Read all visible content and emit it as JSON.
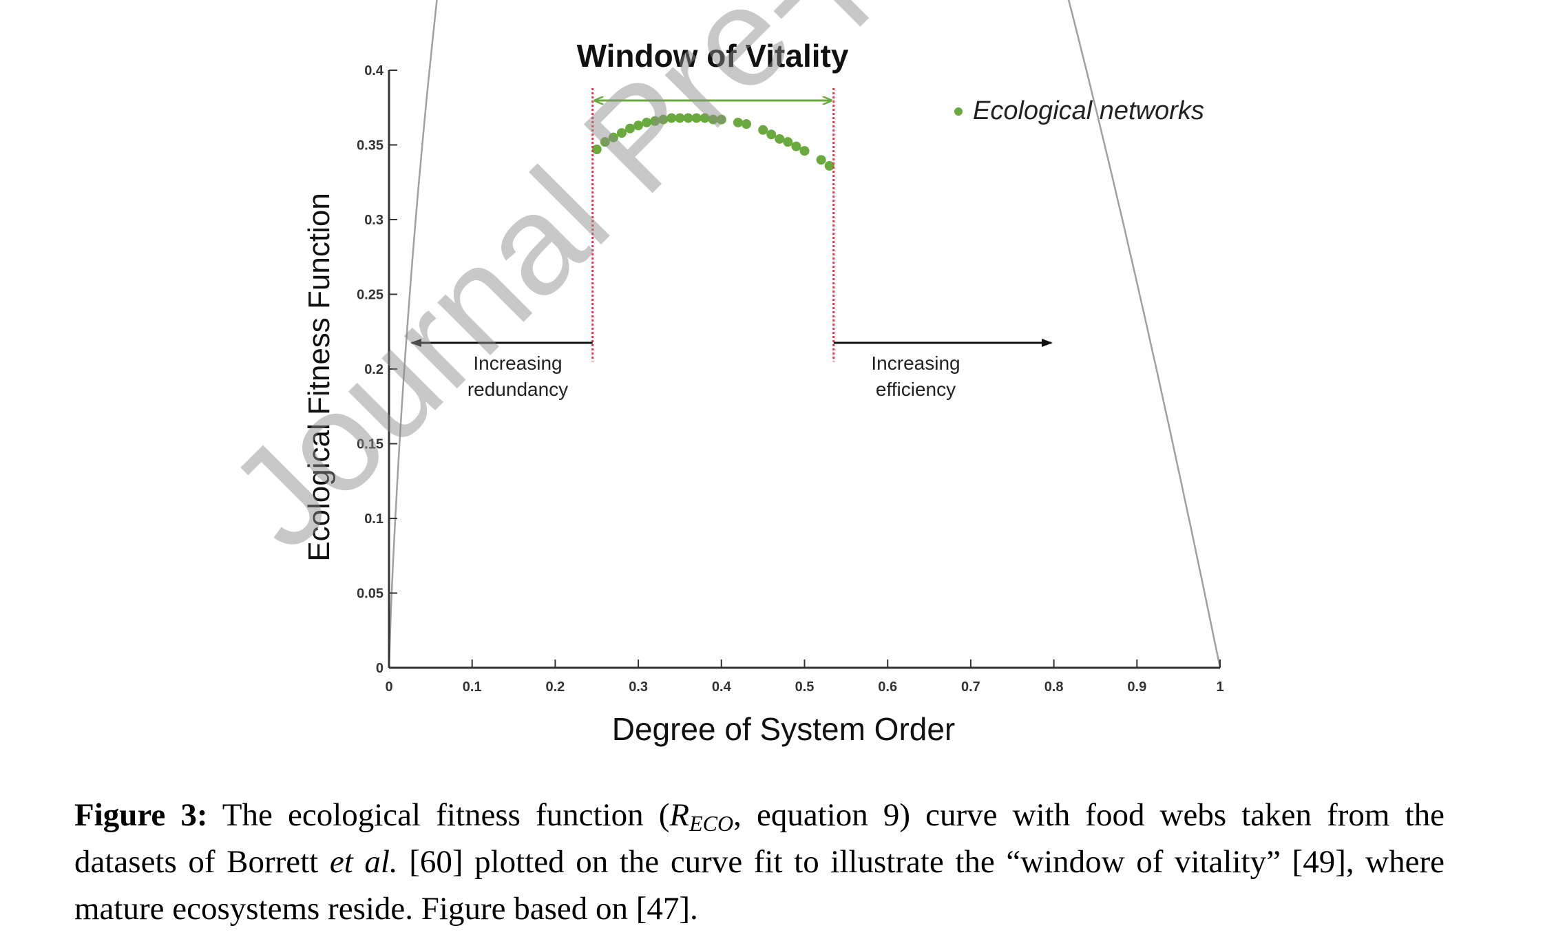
{
  "figure": {
    "title": "Window of Vitality",
    "watermark": "Journal Pre-proof",
    "chart_data": {
      "type": "line",
      "xlabel": "Degree of System Order",
      "ylabel": "Ecological Fitness Function",
      "xlim": [
        0,
        1
      ],
      "ylim": [
        0,
        0.4
      ],
      "x_ticks": [
        "0",
        "0.1",
        "0.2",
        "0.3",
        "0.4",
        "0.5",
        "0.6",
        "0.7",
        "0.8",
        "0.9",
        "1"
      ],
      "y_ticks": [
        "0",
        "0.05",
        "0.1",
        "0.15",
        "0.2",
        "0.25",
        "0.3",
        "0.35",
        "0.4"
      ],
      "grid": false,
      "legend_position": "top-right",
      "series": [
        {
          "name": "Ecological networks",
          "type": "scatter",
          "color": "#6aa93d",
          "x": [
            0.25,
            0.26,
            0.27,
            0.28,
            0.29,
            0.3,
            0.31,
            0.32,
            0.33,
            0.34,
            0.35,
            0.36,
            0.37,
            0.38,
            0.39,
            0.4,
            0.42,
            0.43,
            0.45,
            0.46,
            0.47,
            0.48,
            0.49,
            0.5,
            0.52,
            0.53
          ],
          "y": [
            0.347,
            0.352,
            0.355,
            0.358,
            0.361,
            0.363,
            0.365,
            0.366,
            0.367,
            0.368,
            0.368,
            0.368,
            0.368,
            0.368,
            0.367,
            0.367,
            0.365,
            0.364,
            0.36,
            0.357,
            0.354,
            0.352,
            0.349,
            0.346,
            0.34,
            0.336
          ]
        }
      ],
      "curve": {
        "color": "#a0a0a0"
      },
      "window_of_vitality": {
        "x_min": 0.245,
        "x_max": 0.535,
        "color": "#e8344b",
        "arrow_color": "#6aa93d"
      },
      "annotations": [
        {
          "lines": [
            "Increasing",
            "redundancy"
          ]
        },
        {
          "lines": [
            "Increasing",
            "efficiency"
          ]
        }
      ]
    }
  },
  "caption": {
    "label": "Figure 3:",
    "text_1": " The ecological fitness function (",
    "symbol": "R",
    "symbol_sub": "ECO",
    "text_2": ", equation 9) curve with food webs taken from the datasets of Borrett ",
    "etal": "et al.",
    "text_3": " [60] plotted on the curve fit to illustrate the “window of vitality” [49], where mature ecosystems reside. Figure based on [47]."
  }
}
